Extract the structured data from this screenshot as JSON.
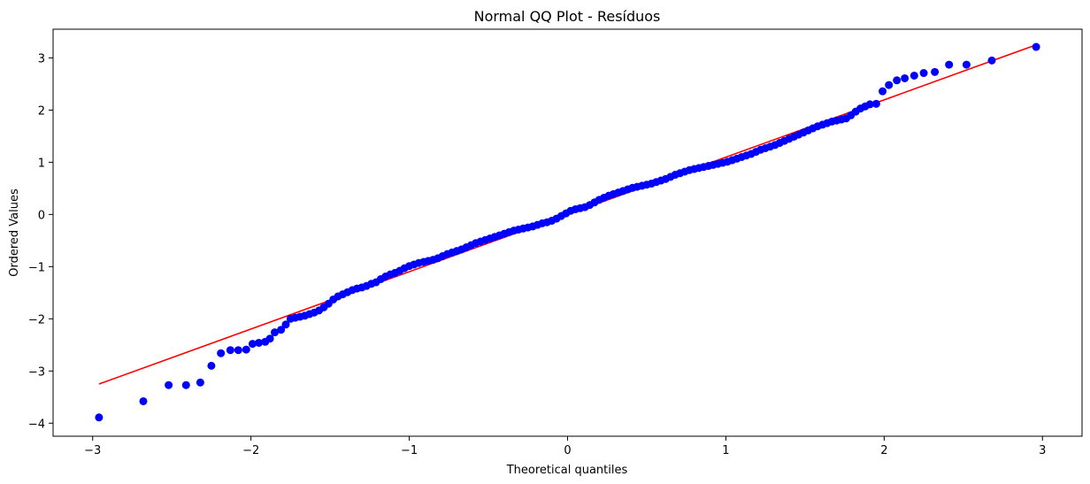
{
  "chart_data": {
    "type": "scatter",
    "title": "Normal QQ Plot - Resíduos",
    "xlabel": "Theoretical quantiles",
    "ylabel": "Ordered Values",
    "xlim": [
      -3.25,
      3.25
    ],
    "ylim": [
      -4.25,
      3.55
    ],
    "xticks": [
      -3,
      -2,
      -1,
      0,
      1,
      2,
      3
    ],
    "xtick_labels": [
      "−3",
      "−2",
      "−1",
      "0",
      "1",
      "2",
      "3"
    ],
    "yticks": [
      -4,
      -3,
      -2,
      -1,
      0,
      1,
      2,
      3
    ],
    "ytick_labels": [
      "−4",
      "−3",
      "−2",
      "−1",
      "0",
      "1",
      "2",
      "3"
    ],
    "grid": false,
    "series": [
      {
        "marker_color": "#0000ff",
        "points": [
          [
            -2.96,
            -3.89
          ],
          [
            -2.68,
            -3.58
          ],
          [
            -2.52,
            -3.27
          ],
          [
            -2.41,
            -3.27
          ],
          [
            -2.32,
            -3.22
          ],
          [
            -2.25,
            -2.9
          ],
          [
            -2.19,
            -2.66
          ],
          [
            -2.13,
            -2.6
          ],
          [
            -2.08,
            -2.6
          ],
          [
            -2.03,
            -2.59
          ],
          [
            -1.99,
            -2.48
          ],
          [
            -1.95,
            -2.46
          ],
          [
            -1.91,
            -2.44
          ],
          [
            -1.88,
            -2.38
          ],
          [
            -1.85,
            -2.26
          ],
          [
            -1.81,
            -2.21
          ],
          [
            -1.78,
            -2.11
          ],
          [
            -1.75,
            -2.0
          ],
          [
            -1.72,
            -1.98
          ],
          [
            -1.69,
            -1.96
          ],
          [
            -1.66,
            -1.94
          ],
          [
            -1.63,
            -1.91
          ],
          [
            -1.6,
            -1.88
          ],
          [
            -1.57,
            -1.84
          ],
          [
            -1.54,
            -1.78
          ],
          [
            -1.51,
            -1.71
          ],
          [
            -1.48,
            -1.63
          ],
          [
            -1.45,
            -1.57
          ],
          [
            -1.42,
            -1.53
          ],
          [
            -1.39,
            -1.49
          ],
          [
            -1.36,
            -1.45
          ],
          [
            -1.33,
            -1.42
          ],
          [
            -1.3,
            -1.4
          ],
          [
            -1.27,
            -1.37
          ],
          [
            -1.24,
            -1.33
          ],
          [
            -1.21,
            -1.3
          ],
          [
            -1.18,
            -1.24
          ],
          [
            -1.15,
            -1.19
          ],
          [
            -1.12,
            -1.15
          ],
          [
            -1.09,
            -1.12
          ],
          [
            -1.06,
            -1.08
          ],
          [
            -1.03,
            -1.03
          ],
          [
            -1.0,
            -0.99
          ],
          [
            -0.97,
            -0.96
          ],
          [
            -0.94,
            -0.93
          ],
          [
            -0.91,
            -0.91
          ],
          [
            -0.88,
            -0.89
          ],
          [
            -0.85,
            -0.87
          ],
          [
            -0.82,
            -0.84
          ],
          [
            -0.79,
            -0.8
          ],
          [
            -0.76,
            -0.76
          ],
          [
            -0.73,
            -0.73
          ],
          [
            -0.7,
            -0.7
          ],
          [
            -0.67,
            -0.67
          ],
          [
            -0.64,
            -0.63
          ],
          [
            -0.61,
            -0.59
          ],
          [
            -0.58,
            -0.55
          ],
          [
            -0.55,
            -0.52
          ],
          [
            -0.52,
            -0.49
          ],
          [
            -0.49,
            -0.46
          ],
          [
            -0.46,
            -0.43
          ],
          [
            -0.43,
            -0.4
          ],
          [
            -0.4,
            -0.37
          ],
          [
            -0.37,
            -0.34
          ],
          [
            -0.34,
            -0.31
          ],
          [
            -0.31,
            -0.29
          ],
          [
            -0.28,
            -0.27
          ],
          [
            -0.25,
            -0.25
          ],
          [
            -0.22,
            -0.23
          ],
          [
            -0.19,
            -0.2
          ],
          [
            -0.16,
            -0.17
          ],
          [
            -0.13,
            -0.15
          ],
          [
            -0.1,
            -0.12
          ],
          [
            -0.07,
            -0.08
          ],
          [
            -0.04,
            -0.03
          ],
          [
            -0.01,
            0.02
          ],
          [
            0.02,
            0.07
          ],
          [
            0.05,
            0.1
          ],
          [
            0.08,
            0.12
          ],
          [
            0.11,
            0.14
          ],
          [
            0.14,
            0.18
          ],
          [
            0.17,
            0.23
          ],
          [
            0.2,
            0.28
          ],
          [
            0.23,
            0.32
          ],
          [
            0.26,
            0.36
          ],
          [
            0.29,
            0.39
          ],
          [
            0.32,
            0.42
          ],
          [
            0.35,
            0.45
          ],
          [
            0.38,
            0.48
          ],
          [
            0.41,
            0.51
          ],
          [
            0.44,
            0.53
          ],
          [
            0.47,
            0.55
          ],
          [
            0.5,
            0.57
          ],
          [
            0.53,
            0.59
          ],
          [
            0.56,
            0.62
          ],
          [
            0.59,
            0.65
          ],
          [
            0.62,
            0.68
          ],
          [
            0.65,
            0.72
          ],
          [
            0.68,
            0.76
          ],
          [
            0.71,
            0.79
          ],
          [
            0.74,
            0.82
          ],
          [
            0.77,
            0.85
          ],
          [
            0.8,
            0.87
          ],
          [
            0.83,
            0.89
          ],
          [
            0.86,
            0.91
          ],
          [
            0.89,
            0.93
          ],
          [
            0.92,
            0.95
          ],
          [
            0.95,
            0.97
          ],
          [
            0.98,
            0.99
          ],
          [
            1.01,
            1.01
          ],
          [
            1.04,
            1.04
          ],
          [
            1.07,
            1.07
          ],
          [
            1.1,
            1.1
          ],
          [
            1.13,
            1.13
          ],
          [
            1.16,
            1.16
          ],
          [
            1.19,
            1.2
          ],
          [
            1.22,
            1.24
          ],
          [
            1.25,
            1.27
          ],
          [
            1.28,
            1.3
          ],
          [
            1.31,
            1.33
          ],
          [
            1.34,
            1.37
          ],
          [
            1.37,
            1.41
          ],
          [
            1.4,
            1.45
          ],
          [
            1.43,
            1.49
          ],
          [
            1.46,
            1.53
          ],
          [
            1.49,
            1.57
          ],
          [
            1.52,
            1.61
          ],
          [
            1.55,
            1.65
          ],
          [
            1.58,
            1.69
          ],
          [
            1.61,
            1.72
          ],
          [
            1.64,
            1.75
          ],
          [
            1.67,
            1.78
          ],
          [
            1.7,
            1.8
          ],
          [
            1.73,
            1.82
          ],
          [
            1.76,
            1.84
          ],
          [
            1.79,
            1.9
          ],
          [
            1.82,
            1.97
          ],
          [
            1.85,
            2.03
          ],
          [
            1.88,
            2.07
          ],
          [
            1.91,
            2.11
          ],
          [
            1.95,
            2.12
          ],
          [
            1.99,
            2.36
          ],
          [
            2.03,
            2.48
          ],
          [
            2.08,
            2.57
          ],
          [
            2.13,
            2.61
          ],
          [
            2.19,
            2.66
          ],
          [
            2.25,
            2.71
          ],
          [
            2.32,
            2.73
          ],
          [
            2.41,
            2.87
          ],
          [
            2.52,
            2.87
          ],
          [
            2.68,
            2.95
          ],
          [
            2.96,
            3.21
          ]
        ]
      }
    ],
    "fit_line": {
      "color": "#ff0000",
      "x": [
        -2.96,
        2.96
      ],
      "y": [
        -3.25,
        3.25
      ]
    }
  }
}
